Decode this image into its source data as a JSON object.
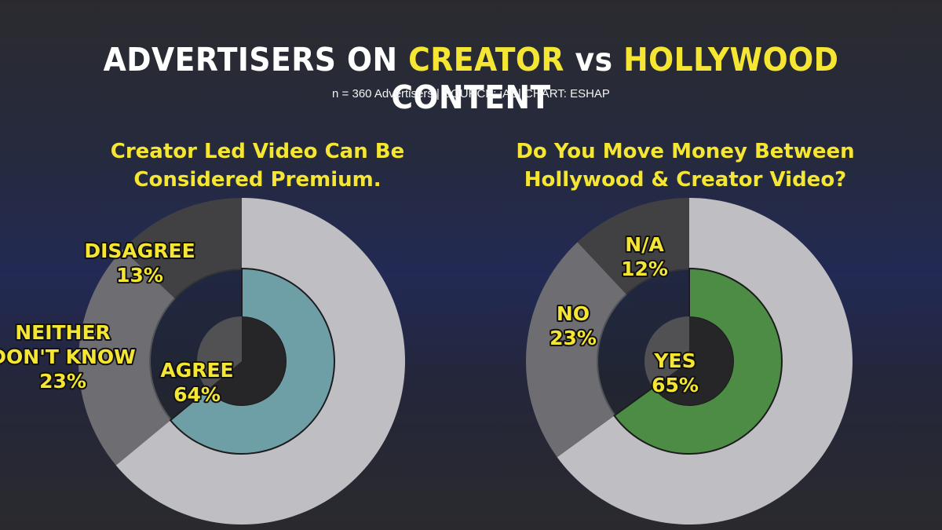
{
  "header": {
    "title_parts": [
      "ADVERTISERS ON ",
      "CREATOR",
      " vs ",
      "HOLLYWOOD",
      " CONTENT"
    ],
    "subtitle": "n = 360 Advertisers | SOURCE: iAB| CHART: ESHAP"
  },
  "colors": {
    "title_white": "#ffffff",
    "highlight_yellow": "#f5e633",
    "outer_ring": "#bfbfc3",
    "outer_ring_side": "#6e6e72",
    "outer_ring_top": "#414144",
    "agree_fill": "#6f9fa6",
    "yes_fill": "#4c8c44",
    "center": "#262628"
  },
  "chart_data": [
    {
      "type": "pie",
      "title": [
        "Creator Led Video Can Be",
        "Considered Premium."
      ],
      "slices": [
        {
          "label": [
            "AGREE",
            "64%"
          ],
          "value": 64
        },
        {
          "label": [
            "NEITHER",
            "DON'T KNOW",
            "23%"
          ],
          "value": 23
        },
        {
          "label": [
            "DISAGREE",
            "13%"
          ],
          "value": 13
        }
      ]
    },
    {
      "type": "pie",
      "title": [
        "Do You Move Money Between",
        "Hollywood & Creator Video?"
      ],
      "slices": [
        {
          "label": [
            "YES",
            "65%"
          ],
          "value": 65
        },
        {
          "label": [
            "NO",
            "23%"
          ],
          "value": 23
        },
        {
          "label": [
            "N/A",
            "12%"
          ],
          "value": 12
        }
      ]
    }
  ]
}
